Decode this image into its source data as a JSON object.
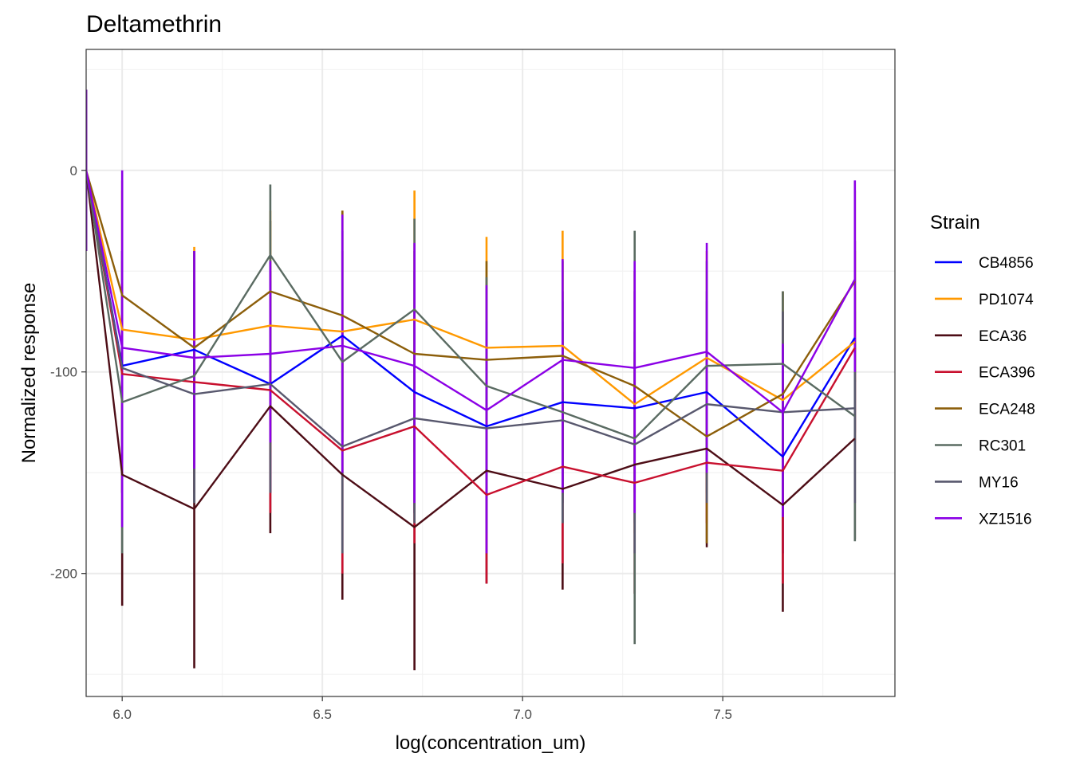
{
  "chart_data": {
    "type": "line",
    "title": "Deltamethrin",
    "xlabel": "log(concentration_um)",
    "ylabel": "Normalized response",
    "xlim": [
      5.91,
      7.93
    ],
    "ylim": [
      -261,
      60
    ],
    "x_ticks": [
      6.0,
      6.5,
      7.0,
      7.5
    ],
    "x_tick_labels": [
      "6.0",
      "6.5",
      "7.0",
      "7.5"
    ],
    "y_ticks": [
      0,
      -100,
      -200
    ],
    "y_tick_labels": [
      "0",
      "-100",
      "-200"
    ],
    "grid": true,
    "legend_title": "Strain",
    "legend_position": "right",
    "x": [
      5.91,
      6.0,
      6.18,
      6.37,
      6.55,
      6.73,
      6.91,
      7.1,
      7.28,
      7.46,
      7.65,
      7.83
    ],
    "series": [
      {
        "name": "CB4856",
        "color": "#0000ff",
        "values": [
          0,
          -97,
          -89,
          -106,
          -82,
          -110,
          -127,
          -115,
          -118,
          -110,
          -142,
          -83
        ],
        "lower": [
          -40,
          -150,
          -140,
          -160,
          -135,
          -170,
          -175,
          -165,
          -175,
          -160,
          -190,
          -130
        ],
        "upper": [
          40,
          -40,
          -40,
          -50,
          -30,
          -50,
          -80,
          -60,
          -60,
          -60,
          -90,
          -35
        ]
      },
      {
        "name": "PD1074",
        "color": "#ff9900",
        "values": [
          0,
          -79,
          -84,
          -77,
          -80,
          -74,
          -88,
          -87,
          -116,
          -93,
          -114,
          -85
        ],
        "lower": [
          -40,
          -150,
          -150,
          -140,
          -140,
          -140,
          -150,
          -150,
          -180,
          -150,
          -165,
          -135
        ],
        "upper": [
          40,
          -10,
          -38,
          -20,
          -20,
          -10,
          -33,
          -30,
          -50,
          -40,
          -60,
          -35
        ]
      },
      {
        "name": "ECA36",
        "color": "#4d0d16",
        "values": [
          0,
          -151,
          -168,
          -117,
          -151,
          -177,
          -149,
          -158,
          -146,
          -138,
          -166,
          -133
        ],
        "lower": [
          -40,
          -216,
          -247,
          -180,
          -213,
          -248,
          -205,
          -208,
          -210,
          -187,
          -219,
          -183
        ],
        "upper": [
          40,
          -90,
          -95,
          -60,
          -95,
          -110,
          -95,
          -110,
          -90,
          -90,
          -110,
          -85
        ]
      },
      {
        "name": "ECA396",
        "color": "#c8102e",
        "values": [
          0,
          -101,
          -105,
          -109,
          -139,
          -127,
          -161,
          -147,
          -155,
          -145,
          -149,
          -88
        ],
        "lower": [
          -40,
          -160,
          -160,
          -170,
          -200,
          -185,
          -205,
          -195,
          -210,
          -175,
          -205,
          -140
        ],
        "upper": [
          40,
          -45,
          -55,
          -50,
          -80,
          -70,
          -120,
          -100,
          -100,
          -110,
          -95,
          -40
        ]
      },
      {
        "name": "ECA248",
        "color": "#8c5e0a",
        "values": [
          0,
          -62,
          -88,
          -60,
          -72,
          -91,
          -94,
          -92,
          -107,
          -132,
          -111,
          -55
        ],
        "lower": [
          -40,
          -120,
          -140,
          -110,
          -130,
          -140,
          -150,
          -140,
          -160,
          -185,
          -160,
          -105
        ],
        "upper": [
          40,
          -5,
          -40,
          -25,
          -20,
          -40,
          -45,
          -45,
          -50,
          -80,
          -60,
          -10
        ]
      },
      {
        "name": "RC301",
        "color": "#5a6b62",
        "values": [
          0,
          -115,
          -102,
          -42,
          -95,
          -69,
          -107,
          -120,
          -133,
          -97,
          -96,
          -122
        ],
        "lower": [
          -40,
          -190,
          -165,
          -105,
          -150,
          -130,
          -160,
          -175,
          -235,
          -150,
          -155,
          -184
        ],
        "upper": [
          40,
          -40,
          -40,
          -7,
          -40,
          -24,
          -53,
          -65,
          -30,
          -45,
          -60,
          -60
        ]
      },
      {
        "name": "MY16",
        "color": "#58586e",
        "values": [
          0,
          -98,
          -111,
          -106,
          -137,
          -123,
          -128,
          -124,
          -136,
          -116,
          -120,
          -118
        ],
        "lower": [
          -40,
          -160,
          -165,
          -160,
          -190,
          -175,
          -180,
          -175,
          -190,
          -165,
          -170,
          -165
        ],
        "upper": [
          40,
          -40,
          -55,
          -55,
          -80,
          -70,
          -75,
          -75,
          -80,
          -65,
          -70,
          -70
        ]
      },
      {
        "name": "XZ1516",
        "color": "#8b00e6",
        "values": [
          0,
          -88,
          -93,
          -91,
          -87,
          -97,
          -119,
          -94,
          -98,
          -90,
          -120,
          -54
        ],
        "lower": [
          -40,
          -177,
          -148,
          -135,
          -150,
          -165,
          -190,
          -160,
          -170,
          -150,
          -172,
          -100
        ],
        "upper": [
          40,
          0,
          -40,
          -45,
          -22,
          -36,
          -57,
          -44,
          -45,
          -36,
          -86,
          -5
        ]
      }
    ]
  }
}
